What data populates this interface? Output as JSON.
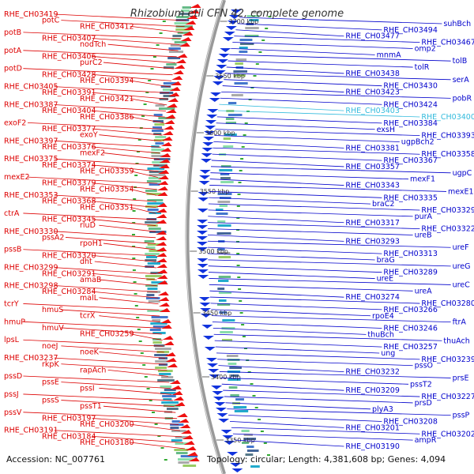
{
  "title": "Rhizobium etli CFN 42, complete genome",
  "footer": {
    "accession": "Accession: NC_007761",
    "topology": "Topology: circular; Length: 4,381,608 bp; Genes: 4,094"
  },
  "colors": {
    "left_labels": "#dd0000",
    "right_labels": "#0000cc",
    "highlight_labels": "#33bbdd",
    "ruler": "#999999",
    "tick_labels": "#333333",
    "tick_marks": "#33aa33"
  },
  "scale_ticks": [
    "3700 kbp",
    "3650 kbp",
    "3600 kbp",
    "3550 kbp",
    "3500 kbp",
    "3450 kbp",
    "3400 kbp",
    "3350 kbp"
  ],
  "left_labels": [
    "RHE_CH03419",
    "potC",
    "RHE_CH03412",
    "potB",
    "RHE_CH03407",
    "nodTch",
    "potA",
    "RHE_CH03406",
    "purC2",
    "potD",
    "RHE_CH03428",
    "RHE_CH03394",
    "RHE_CH03405",
    "RHE_CH03391",
    "RHE_CH03421",
    "RHE_CH03387",
    "RHE_CH03404",
    "RHE_CH03386",
    "exoF2",
    "RHE_CH03377",
    "exoY",
    "RHE_CH03397",
    "RHE_CH03376",
    "mexF2",
    "RHE_CH03375",
    "RHE_CH03374",
    "RHE_CH03359",
    "mexE2",
    "RHE_CH03379",
    "RHE_CH03354",
    "RHE_CH03353",
    "RHE_CH03368",
    "RHE_CH03351",
    "ctrA",
    "RHE_CH03345",
    "rluD",
    "RHE_CH03330",
    "pssA2",
    "rpoH1",
    "pssB",
    "RHE_CH03320",
    "dht",
    "RHE_CH03299",
    "RHE_CH03291",
    "amaB",
    "RHE_CH03298",
    "RHE_CH03284",
    "malL",
    "tcrY",
    "hmuS",
    "tcrX",
    "hmuP",
    "hmuV",
    "RHE_CH03259",
    "lpsL",
    "noeJ",
    "noeK",
    "RHE_CH03237",
    "rkpK",
    "rapAch",
    "pssD",
    "pssE",
    "pssI",
    "pssJ",
    "pssS",
    "pssT1",
    "pssV",
    "RHE_CH03197",
    "RHE_CH03200",
    "RHE_CH03191",
    "RHE_CH03184",
    "RHE_CH03180"
  ],
  "right_labels": [
    "suhBch",
    "RHE_CH03494",
    "RHE_CH03477",
    "RHE_CH03467",
    "omp2",
    "mnmA",
    "tolB",
    "tolR",
    "RHE_CH03438",
    "serA",
    "RHE_CH03430",
    "RHE_CH03423",
    "pobR",
    "RHE_CH03424",
    "RHE_CH03403",
    "RHE_CH03400",
    "RHE_CH03384",
    "exsH",
    "RHE_CH03393",
    "ugpBch2",
    "RHE_CH03381",
    "RHE_CH03358",
    "RHE_CH03367",
    "RHE_CH03357",
    "ugpC",
    "mexF1",
    "RHE_CH03343",
    "mexE1",
    "RHE_CH03335",
    "braC2",
    "RHE_CH03329",
    "purA",
    "RHE_CH03317",
    "RHE_CH03322",
    "ureB",
    "RHE_CH03293",
    "ureF",
    "RHE_CH03313",
    "braG",
    "ureG",
    "RHE_CH03289",
    "ureE",
    "ureC",
    "ureA",
    "RHE_CH03274",
    "RHE_CH03280",
    "RHE_CH03266",
    "rpoE4",
    "ftrA",
    "RHE_CH03246",
    "thuBch",
    "thuAch",
    "RHE_CH03257",
    "ung",
    "RHE_CH03239",
    "pssO",
    "RHE_CH03232",
    "prsE",
    "pssT2",
    "RHE_CH03209",
    "RHE_CH03227",
    "prsD",
    "plyA3",
    "pssP",
    "RHE_CH03208",
    "RHE_CH03201",
    "RHE_CH03202",
    "ampR",
    "RHE_CH03190"
  ]
}
